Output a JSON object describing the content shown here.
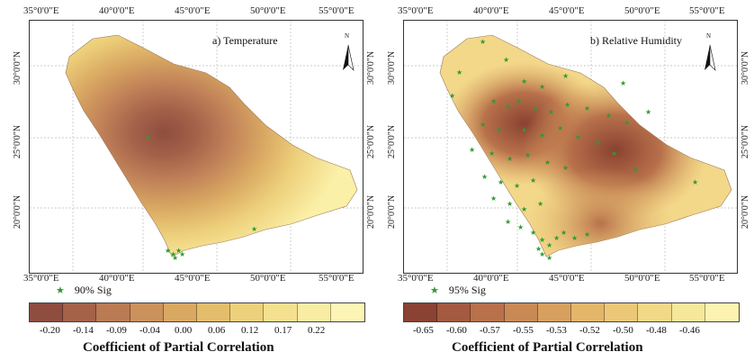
{
  "panels": [
    {
      "title": "a) Temperature",
      "top_ticks": [
        "35°0'0\"E",
        "40°0'0\"E",
        "45°0'0\"E",
        "50°0'0\"E",
        "55°0'0\"E"
      ],
      "bottom_ticks": [
        "35°0'0\"E",
        "40°0'0\"E",
        "45°0'0\"E",
        "50°0'0\"E",
        "55°0'0\"E"
      ],
      "left_ticks": [
        "30°0'0\"N",
        "25°0'0\"N",
        "20°0'0\"N"
      ],
      "right_ticks": [
        "30°0'0\"N",
        "25°0'0\"N",
        "20°0'0\"N"
      ],
      "sig_label": "90% Sig",
      "colorbar_ticks": [
        "-0.20",
        "-0.14",
        "-0.09",
        "-0.04",
        "0.00",
        "0.06",
        "0.12",
        "0.17",
        "0.22"
      ],
      "colorbar_colors": [
        "#8e4d3e",
        "#a5624a",
        "#ba7a53",
        "#cb915c",
        "#d9a862",
        "#e4bd6c",
        "#edd07b",
        "#f4e08e",
        "#f9eda3",
        "#fdf5b6"
      ],
      "colorbar_title": "Coefficient of Partial Correlation"
    },
    {
      "title": "b) Relative Humidity",
      "top_ticks": [
        "35°0'0\"E",
        "40°0'0\"E",
        "45°0'0\"E",
        "50°0'0\"E",
        "55°0'0\"E"
      ],
      "bottom_ticks": [
        "35°0'0\"E",
        "40°0'0\"E",
        "45°0'0\"E",
        "50°0'0\"E",
        "55°0'0\"E"
      ],
      "left_ticks": [
        "30°0'0\"N",
        "25°0'0\"N",
        "20°0'0\"N"
      ],
      "right_ticks": [
        "30°0'0\"N",
        "25°0'0\"N",
        "20°0'0\"N"
      ],
      "sig_label": "95% Sig",
      "colorbar_ticks": [
        "-0.65",
        "-0.60",
        "-0.57",
        "-0.55",
        "-0.53",
        "-0.52",
        "-0.50",
        "-0.48",
        "-0.46"
      ],
      "colorbar_colors": [
        "#8a4232",
        "#a35a40",
        "#b8714b",
        "#c98955",
        "#d8a05f",
        "#e3b66a",
        "#ebc877",
        "#f2d987",
        "#f7e79a",
        "#fcf3b0"
      ],
      "colorbar_title": "Coefficient of Partial Correlation"
    }
  ],
  "north_arrow_letter": "N",
  "sig_marker_color": "#2f9a2f",
  "grid_color": "#bbbbbb"
}
